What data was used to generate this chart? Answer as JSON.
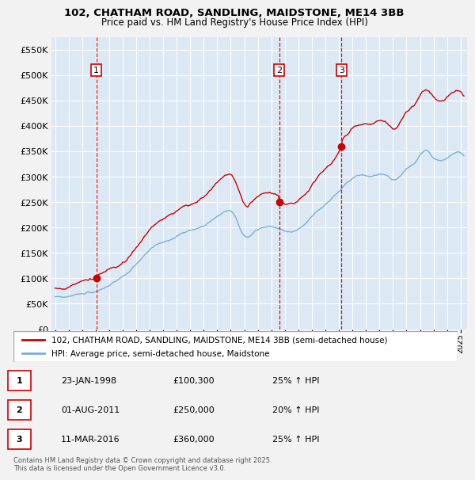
{
  "title": "102, CHATHAM ROAD, SANDLING, MAIDSTONE, ME14 3BB",
  "subtitle": "Price paid vs. HM Land Registry's House Price Index (HPI)",
  "sale_dates": [
    "1998-01-23",
    "2011-08-01",
    "2016-03-11"
  ],
  "sale_prices": [
    100300,
    250000,
    360000
  ],
  "sale_labels": [
    "1",
    "2",
    "3"
  ],
  "legend_entries": [
    "102, CHATHAM ROAD, SANDLING, MAIDSTONE, ME14 3BB (semi-detached house)",
    "HPI: Average price, semi-detached house, Maidstone"
  ],
  "table_rows": [
    [
      "1",
      "23-JAN-1998",
      "£100,300",
      "25% ↑ HPI"
    ],
    [
      "2",
      "01-AUG-2011",
      "£250,000",
      "20% ↑ HPI"
    ],
    [
      "3",
      "11-MAR-2016",
      "£360,000",
      "25% ↑ HPI"
    ]
  ],
  "footer": "Contains HM Land Registry data © Crown copyright and database right 2025.\nThis data is licensed under the Open Government Licence v3.0.",
  "hpi_color": "#7bafd4",
  "price_color": "#cc0000",
  "sale_dot_color": "#cc0000",
  "vline_color": "#cc0000",
  "bg_color": "#dce9f5",
  "grid_color": "#ffffff",
  "fig_bg": "#f0f0f0",
  "ylim": [
    0,
    575000
  ],
  "yticks": [
    0,
    50000,
    100000,
    150000,
    200000,
    250000,
    300000,
    350000,
    400000,
    450000,
    500000,
    550000
  ],
  "ytick_labels": [
    "£0",
    "£50K",
    "£100K",
    "£150K",
    "£200K",
    "£250K",
    "£300K",
    "£350K",
    "£400K",
    "£450K",
    "£500K",
    "£550K"
  ],
  "xstart_year": 1995,
  "xend_year": 2025
}
